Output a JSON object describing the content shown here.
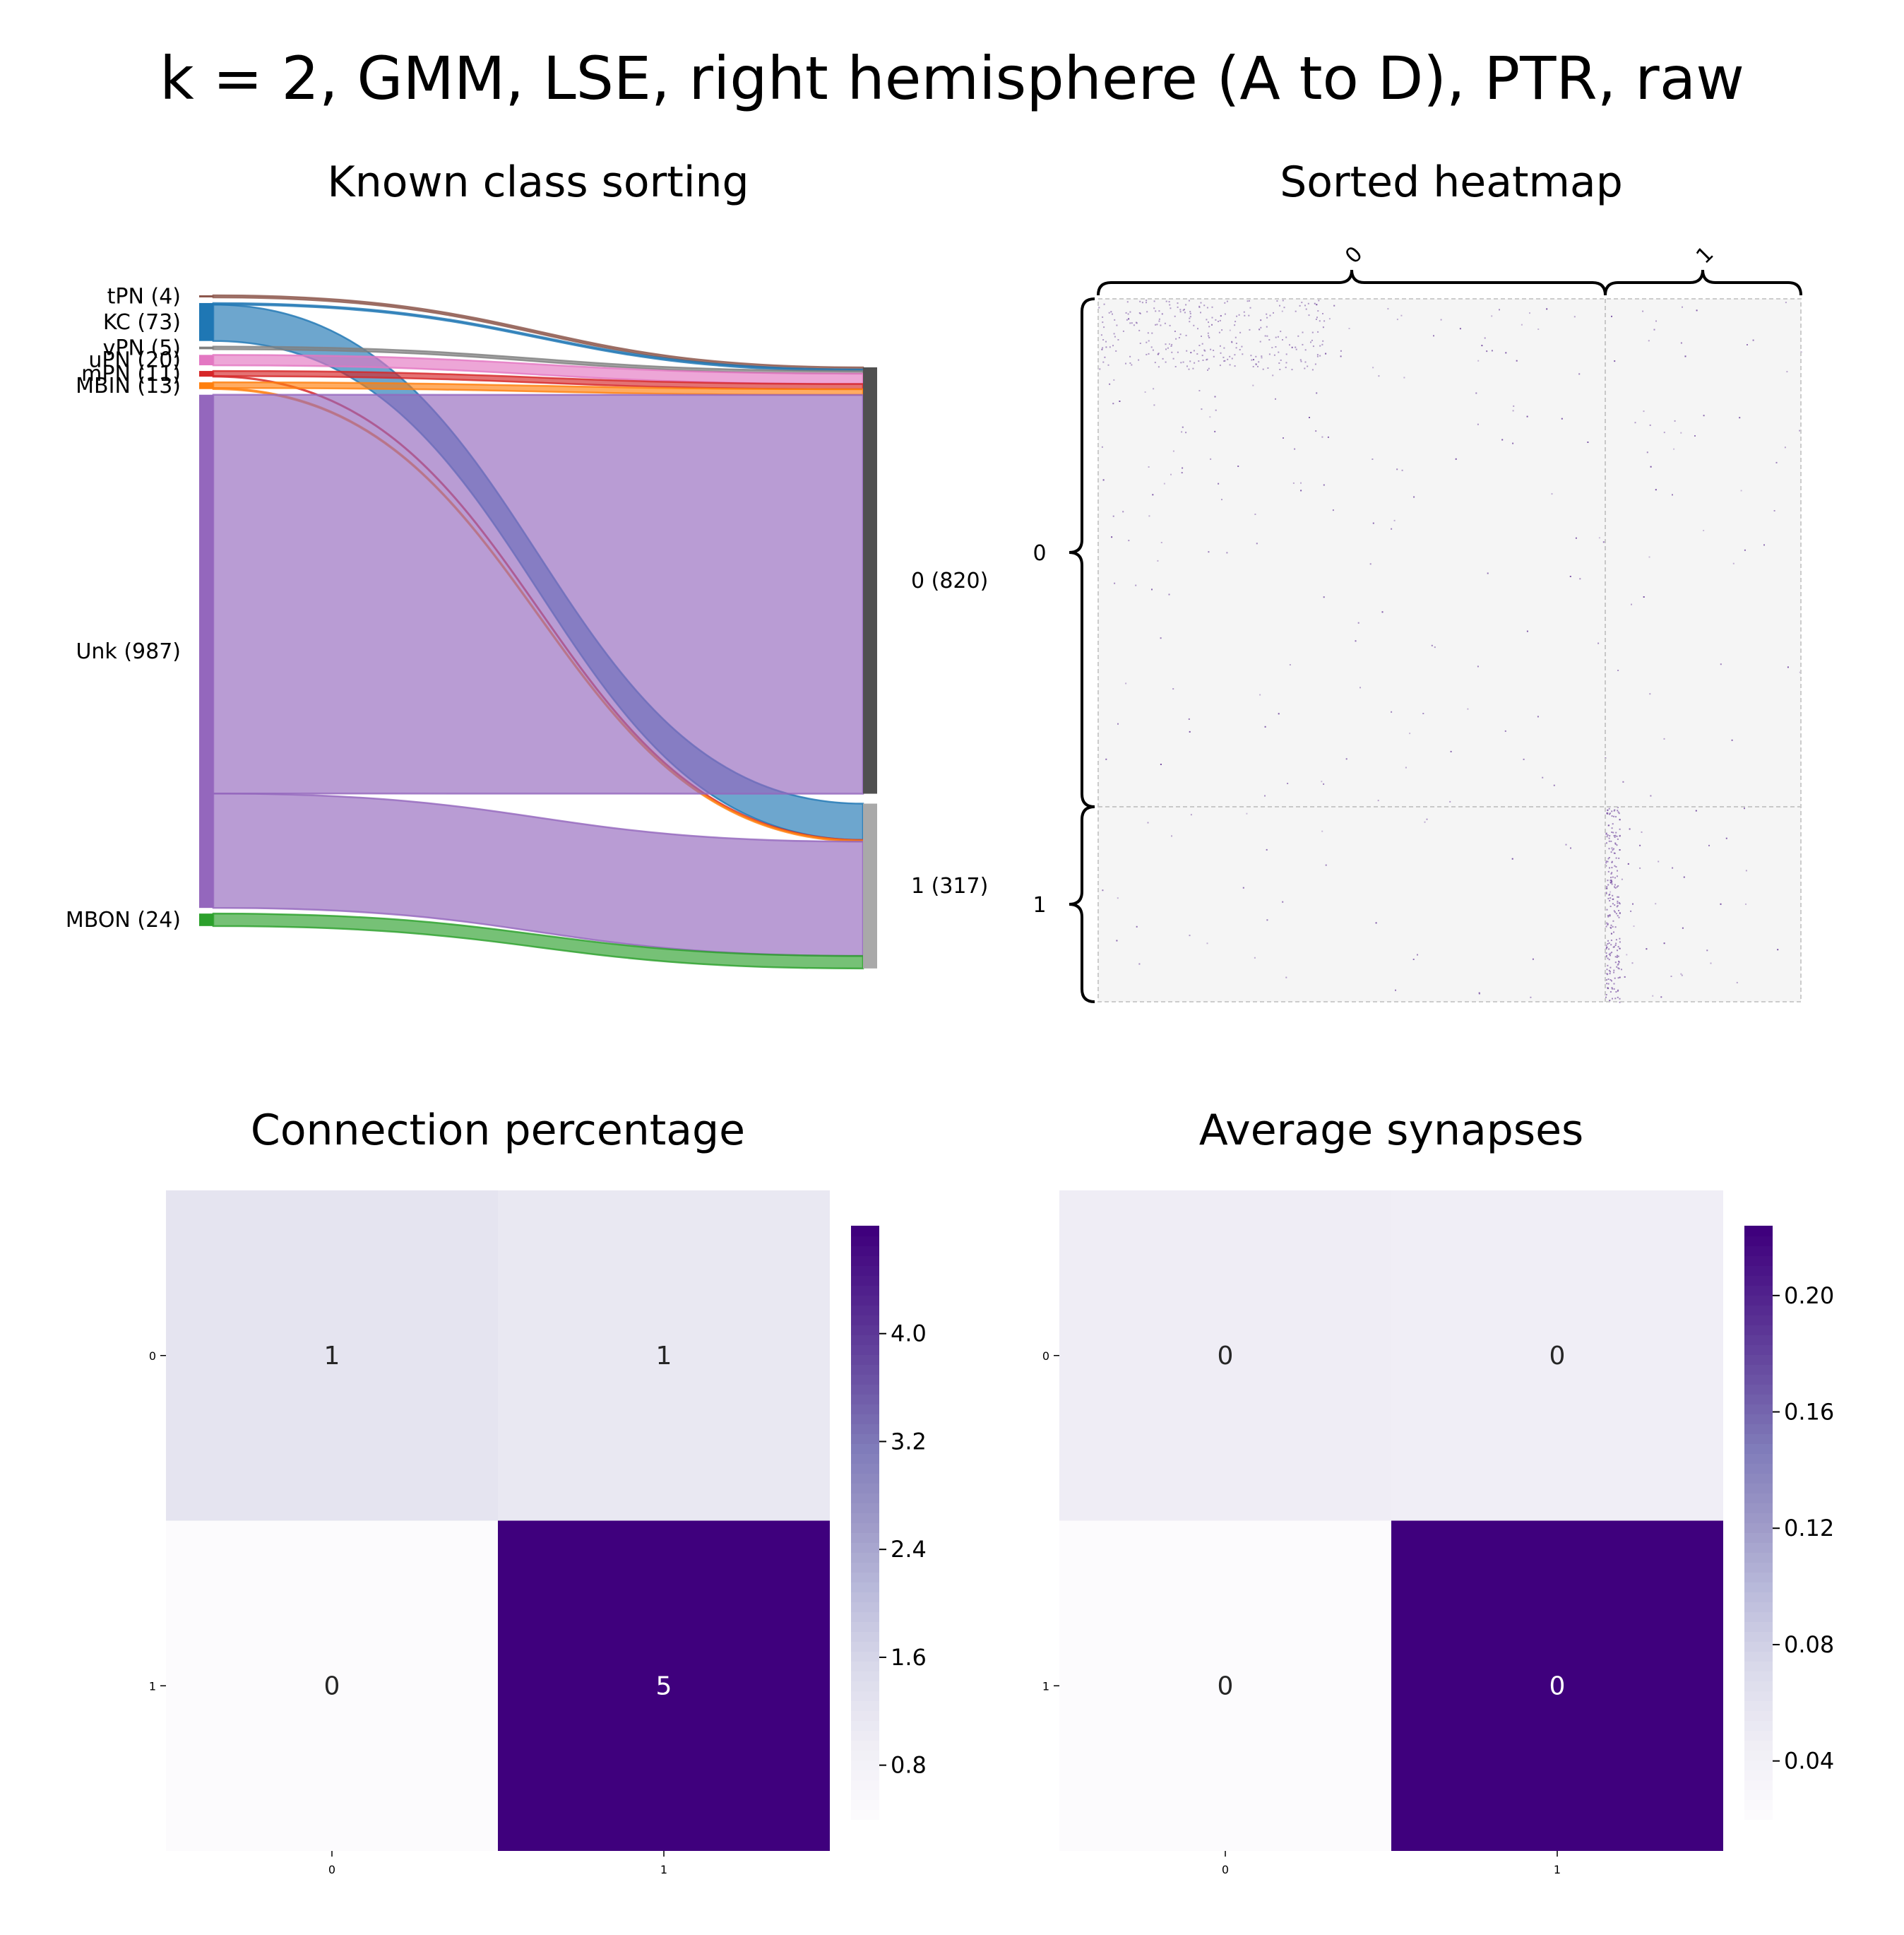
{
  "title": "k = 2, GMM, LSE, right hemisphere (A to D), PTR, raw",
  "panels": {
    "sankey_title": "Known class sorting",
    "heatmap_title": "Sorted heatmap",
    "conn_title": "Connection percentage",
    "syn_title": "Average synapses"
  },
  "colors": {
    "tPN": "#8c564b",
    "KC": "#1f77b4",
    "vPN": "#7f7f7f",
    "uPN": "#e377c2",
    "mPN": "#d62728",
    "MBIN": "#ff7f0e",
    "Unk": "#9467bd",
    "MBON": "#2ca02c",
    "cluster0": "#505050",
    "cluster1": "#a9a9a9",
    "purple_dark": "#3f007d",
    "purple_light": "#fcfbfd"
  },
  "chart_data": [
    {
      "type": "sankey",
      "title": "Known class sorting",
      "sources": [
        {
          "name": "tPN",
          "label": "tPN (4)",
          "count": 4
        },
        {
          "name": "KC",
          "label": "KC (73)",
          "count": 73
        },
        {
          "name": "vPN",
          "label": "vPN (5)",
          "count": 5
        },
        {
          "name": "uPN",
          "label": "uPN (20)",
          "count": 20
        },
        {
          "name": "mPN",
          "label": "mPN (11)",
          "count": 11
        },
        {
          "name": "MBIN",
          "label": "MBIN (13)",
          "count": 13
        },
        {
          "name": "Unk",
          "label": "Unk (987)",
          "count": 987
        },
        {
          "name": "MBON",
          "label": "MBON (24)",
          "count": 24
        }
      ],
      "targets": [
        {
          "name": "0",
          "label": "0 (820)",
          "count": 820
        },
        {
          "name": "1",
          "label": "1 (317)",
          "count": 317
        }
      ],
      "flows": [
        {
          "source": "tPN",
          "target": "0",
          "value": 4
        },
        {
          "source": "KC",
          "target": "0",
          "value": 3
        },
        {
          "source": "KC",
          "target": "1",
          "value": 70
        },
        {
          "source": "vPN",
          "target": "0",
          "value": 5
        },
        {
          "source": "uPN",
          "target": "0",
          "value": 20
        },
        {
          "source": "mPN",
          "target": "0",
          "value": 10
        },
        {
          "source": "mPN",
          "target": "1",
          "value": 1
        },
        {
          "source": "MBIN",
          "target": "0",
          "value": 11
        },
        {
          "source": "MBIN",
          "target": "1",
          "value": 2
        },
        {
          "source": "Unk",
          "target": "0",
          "value": 767
        },
        {
          "source": "Unk",
          "target": "1",
          "value": 220
        },
        {
          "source": "MBON",
          "target": "1",
          "value": 24
        }
      ]
    },
    {
      "type": "heatmap",
      "title": "Sorted heatmap",
      "groups": [
        {
          "label": "0",
          "size": 820
        },
        {
          "label": "1",
          "size": 317
        }
      ]
    },
    {
      "type": "heatmap",
      "title": "Connection percentage",
      "row_labels": [
        "0",
        "1"
      ],
      "col_labels": [
        "0",
        "1"
      ],
      "values": [
        [
          1.2,
          1.1
        ],
        [
          0.4,
          4.8
        ]
      ],
      "annotations": [
        [
          "1",
          "1"
        ],
        [
          "0",
          "5"
        ]
      ],
      "colorbar": {
        "ticks": [
          "0.8",
          "1.6",
          "2.4",
          "3.2",
          "4.0"
        ],
        "tick_values": [
          0.8,
          1.6,
          2.4,
          3.2,
          4.0
        ],
        "range": [
          0.4,
          4.8
        ]
      }
    },
    {
      "type": "heatmap",
      "title": "Average synapses",
      "row_labels": [
        "0",
        "1"
      ],
      "col_labels": [
        "0",
        "1"
      ],
      "values": [
        [
          0.045,
          0.043
        ],
        [
          0.02,
          0.224
        ]
      ],
      "annotations": [
        [
          "0",
          "0"
        ],
        [
          "0",
          "0"
        ]
      ],
      "colorbar": {
        "ticks": [
          "0.04",
          "0.08",
          "0.12",
          "0.16",
          "0.20"
        ],
        "tick_values": [
          0.04,
          0.08,
          0.12,
          0.16,
          0.2
        ],
        "range": [
          0.02,
          0.224
        ]
      }
    }
  ]
}
